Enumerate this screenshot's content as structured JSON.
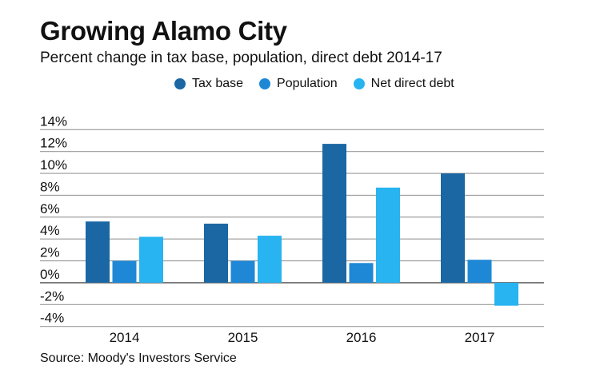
{
  "chart_data": {
    "type": "bar",
    "title": "Growing Alamo City",
    "subtitle": "Percent change in tax base, population, direct debt 2014-17",
    "categories": [
      "2014",
      "2015",
      "2016",
      "2017"
    ],
    "series": [
      {
        "name": "Tax base",
        "color": "#1a67a3",
        "values": [
          5.6,
          5.4,
          12.7,
          10.0
        ]
      },
      {
        "name": "Population",
        "color": "#1e88d6",
        "values": [
          2.0,
          2.0,
          1.8,
          2.1
        ]
      },
      {
        "name": "Net direct debt",
        "color": "#27b4f0",
        "values": [
          4.2,
          4.3,
          8.7,
          -2.1
        ]
      }
    ],
    "yticks": [
      14,
      12,
      10,
      8,
      6,
      4,
      2,
      0,
      -2,
      -4
    ],
    "ytick_labels": [
      "14%",
      "12%",
      "10%",
      "8%",
      "6%",
      "4%",
      "2%",
      "0%",
      "-2%",
      "-4%"
    ],
    "ylim": [
      -4,
      14
    ],
    "xlabel": "",
    "ylabel": "",
    "grid": true,
    "legend_position": "top",
    "source": "Source: Moody's Investors Service"
  }
}
